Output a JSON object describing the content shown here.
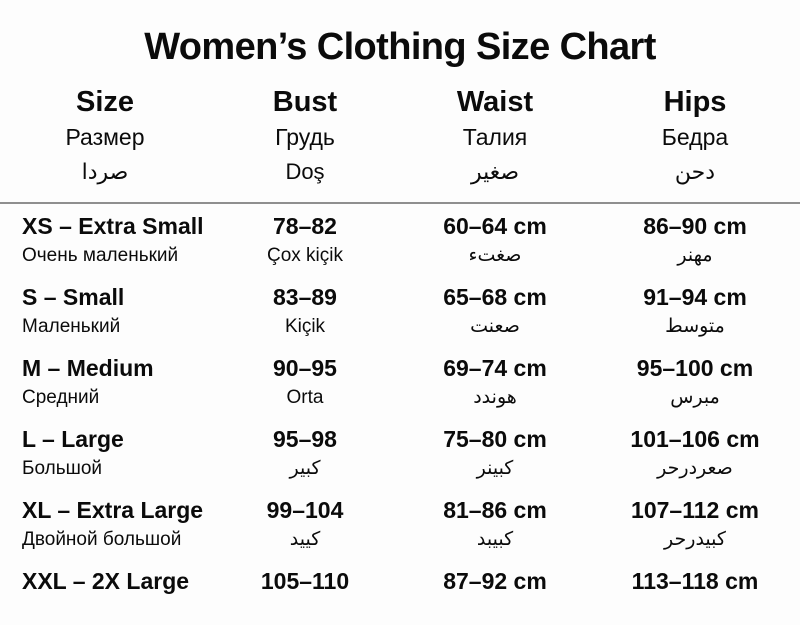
{
  "title": "Women’s Clothing Size Chart",
  "chart_data": {
    "type": "table",
    "title": "Women’s Clothing Size Chart",
    "units": "cm",
    "columns": [
      {
        "en": "Size",
        "ru": "Размер",
        "alt": "صردا"
      },
      {
        "en": "Bust",
        "ru": "Грудь",
        "alt": "Doş"
      },
      {
        "en": "Waist",
        "ru": "Талия",
        "alt": "صغير"
      },
      {
        "en": "Hips",
        "ru": "Бедра",
        "alt": "دحن"
      }
    ],
    "rows": [
      {
        "size": "XS – Extra Small",
        "size_sub": "Очень маленький",
        "bust": "78–82",
        "bust_sub": "Çox kiçik",
        "waist": "60–64 cm",
        "waist_sub": "صغتء",
        "hips": "86–90 cm",
        "hips_sub": "مهنر"
      },
      {
        "size": "S – Small",
        "size_sub": "Маленький",
        "bust": "83–89",
        "bust_sub": "Kiçik",
        "waist": "65–68 cm",
        "waist_sub": "صعنت",
        "hips": "91–94 cm",
        "hips_sub": "متوسط"
      },
      {
        "size": "M – Medium",
        "size_sub": "Средний",
        "bust": "90–95",
        "bust_sub": "Orta",
        "waist": "69–74 cm",
        "waist_sub": "هوندد",
        "hips": "95–100 cm",
        "hips_sub": "مبرس"
      },
      {
        "size": "L – Large",
        "size_sub": "Большой",
        "bust": "95–98",
        "bust_sub": "كبير",
        "waist": "75–80 cm",
        "waist_sub": "كبينر",
        "hips": "101–106 cm",
        "hips_sub": "صعردرحر"
      },
      {
        "size": "XL – Extra Large",
        "size_sub": "Двойной большой",
        "bust": "99–104",
        "bust_sub": "كييد",
        "waist": "81–86 cm",
        "waist_sub": "كبيبد",
        "hips": "107–112 cm",
        "hips_sub": "كبيدرحر"
      },
      {
        "size": "XXL – 2X Large",
        "size_sub": "",
        "bust": "105–110",
        "bust_sub": "",
        "waist": "87–92 cm",
        "waist_sub": "",
        "hips": "113–118 cm",
        "hips_sub": ""
      }
    ]
  }
}
